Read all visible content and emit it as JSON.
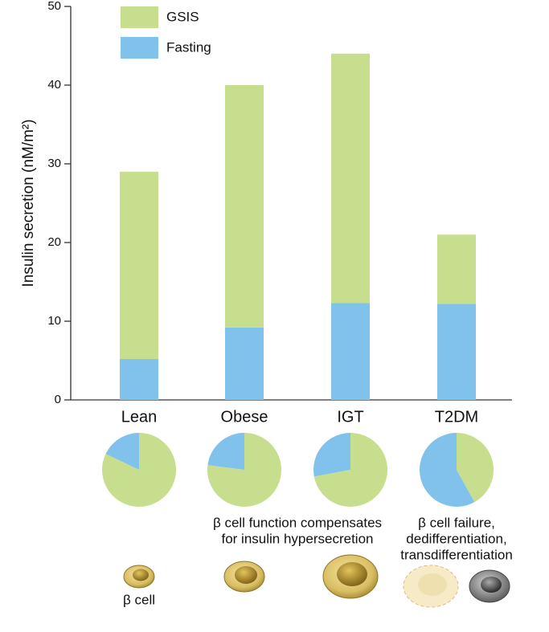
{
  "chart_data": {
    "type": "stacked-bar",
    "y_label": "Insulin secretion (nM/m²)",
    "categories": [
      "Lean",
      "Obese",
      "IGT",
      "T2DM"
    ],
    "series": [
      {
        "name": "Fasting",
        "color": "#80c2eb",
        "values": [
          5.2,
          9.2,
          12.3,
          12.2
        ]
      },
      {
        "name": "GSIS",
        "color": "#c6de8e",
        "values": [
          23.8,
          30.8,
          31.7,
          8.8
        ]
      }
    ],
    "ylim": [
      0,
      50
    ],
    "yticks": [
      0,
      10,
      20,
      30,
      40,
      50
    ],
    "annotations": [
      {
        "lines": [
          "β cell function compensates",
          "for insulin hypersecretion"
        ]
      },
      {
        "lines": [
          "β cell failure,",
          "dedifferentiation,",
          "transdifferentiation"
        ]
      },
      {
        "lines": [
          "β cell"
        ]
      }
    ]
  }
}
